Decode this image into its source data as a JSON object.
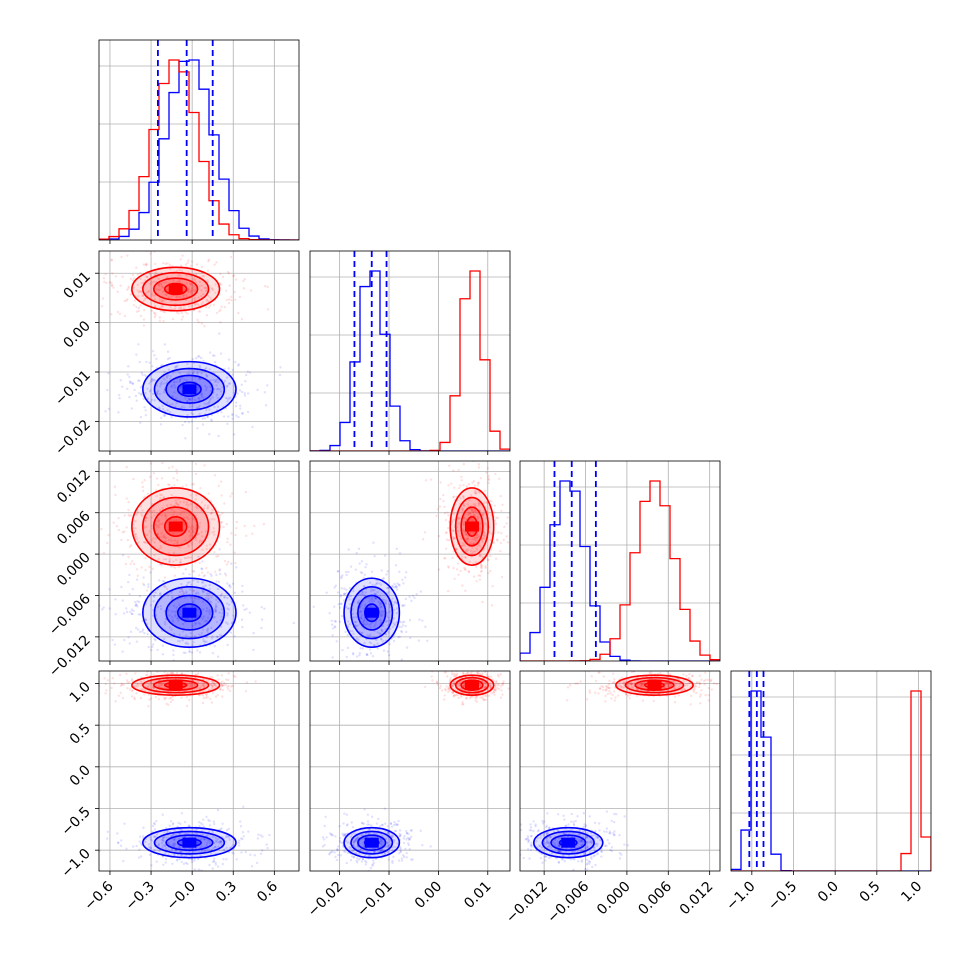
{
  "chart_data": {
    "type": "corner",
    "title": "",
    "grid": true,
    "colors": {
      "series_a": "#ff0000",
      "series_b": "#0000ff"
    },
    "series": [
      {
        "color": "#0000ff",
        "p0": {
          "mean": -0.02,
          "sd": 0.17
        },
        "p1": {
          "mean": -0.0135,
          "sd": 0.0028
        },
        "p2": {
          "mean": -0.0085,
          "sd": 0.0025
        },
        "p3": {
          "mean": -0.91,
          "sd": 0.09
        },
        "quantiles": [
          [
            -0.25,
            -0.04,
            0.15
          ],
          [
            -0.017,
            -0.0135,
            -0.0105
          ],
          [
            -0.0105,
            -0.008,
            -0.0045
          ],
          [
            -1.03,
            -0.94,
            -0.86
          ]
        ]
      },
      {
        "color": "#ff0000",
        "p0": {
          "mean": -0.12,
          "sd": 0.16
        },
        "p1": {
          "mean": 0.0068,
          "sd": 0.0022
        },
        "p2": {
          "mean": 0.004,
          "sd": 0.0028
        },
        "p3": {
          "mean": 0.98,
          "sd": 0.06
        }
      }
    ],
    "axes": {
      "p0": {
        "range": [
          -0.68,
          0.78
        ],
        "ticks": [
          -0.6,
          -0.3,
          0.0,
          0.3,
          0.6
        ],
        "tick_labels": [
          "−0.6",
          "−0.3",
          "−0.0",
          "0.3",
          "0.6"
        ]
      },
      "p1": {
        "range": [
          -0.026,
          0.0145
        ],
        "ticks": [
          -0.02,
          -0.01,
          0.0,
          0.01
        ],
        "tick_labels": [
          "−0.02",
          "−0.01",
          "0.00",
          "0.01"
        ]
      },
      "p2": {
        "range": [
          -0.0155,
          0.0135
        ],
        "ticks": [
          -0.012,
          -0.006,
          0.0,
          0.006,
          0.012
        ],
        "tick_labels": [
          "−0.012",
          "−0.006",
          "0.000",
          "0.006",
          "0.012"
        ]
      },
      "p3": {
        "range": [
          -1.25,
          1.15
        ],
        "ticks": [
          -1.0,
          -0.5,
          0.0,
          0.5,
          1.0
        ],
        "tick_labels": [
          "−1.0",
          "−0.5",
          "0.0",
          "0.5",
          "1.0"
        ]
      }
    }
  }
}
